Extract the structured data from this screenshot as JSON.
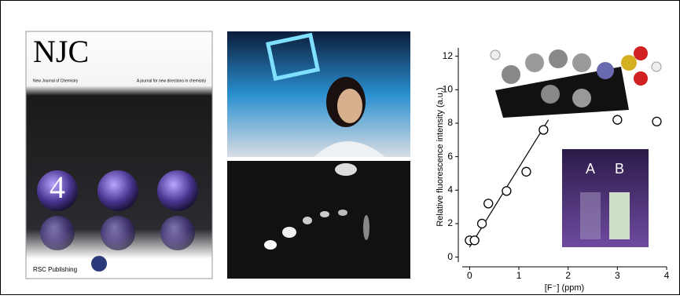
{
  "cover": {
    "title": "NJC",
    "journal": "New Journal of Chemistry",
    "tagline": "A journal for new directions in chemistry",
    "issue": "4",
    "publisher": "RSC Publishing"
  },
  "chart_data": {
    "type": "scatter",
    "x_label": "[F⁻] (ppm)",
    "y_label": "Relative fluorescence intensity (a.u.)",
    "x": [
      0,
      0.1,
      0.25,
      0.38,
      0.75,
      1.15,
      1.5,
      3.0,
      3.8
    ],
    "values": [
      1.0,
      1.0,
      2.0,
      3.2,
      3.95,
      5.1,
      7.6,
      8.2,
      8.1
    ],
    "fit": {
      "x": [
        0,
        1.6
      ],
      "values": [
        0.6,
        8.2
      ]
    },
    "xlim": [
      -0.15,
      4.0
    ],
    "ylim": [
      -0.3,
      12.5
    ],
    "xticks": [
      0,
      1,
      2,
      3,
      4
    ],
    "yticks": [
      0,
      2,
      4,
      6,
      8,
      10,
      12
    ],
    "inset_labels": [
      "A",
      "B"
    ]
  }
}
